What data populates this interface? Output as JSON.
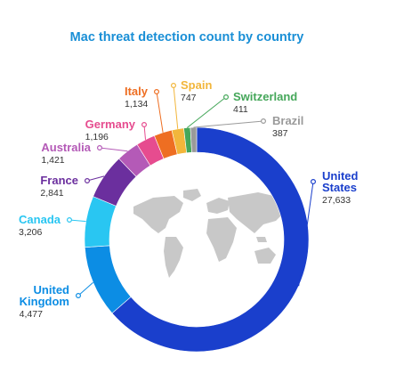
{
  "title_color": "#1a8fd6",
  "chart_data": {
    "type": "pie",
    "donut": true,
    "title": "Mac threat detection count by country",
    "legend": "callout labels around the ring",
    "slices": [
      {
        "label": "United States",
        "label_lines": [
          "United",
          "States"
        ],
        "value_text": "27,633",
        "value": 27633,
        "color": "#1a3fcc"
      },
      {
        "label": "United Kingdom",
        "label_lines": [
          "United",
          "Kingdom"
        ],
        "value_text": "4,477",
        "value": 4477,
        "color": "#0c8de4"
      },
      {
        "label": "Canada",
        "label_lines": [
          "Canada"
        ],
        "value_text": "3,206",
        "value": 3206,
        "color": "#29c6f2"
      },
      {
        "label": "France",
        "label_lines": [
          "France"
        ],
        "value_text": "2,841",
        "value": 2841,
        "color": "#6b2f9e"
      },
      {
        "label": "Australia",
        "label_lines": [
          "Australia"
        ],
        "value_text": "1,421",
        "value": 1421,
        "color": "#b45ab7"
      },
      {
        "label": "Germany",
        "label_lines": [
          "Germany"
        ],
        "value_text": "1,196",
        "value": 1196,
        "color": "#e64c8f"
      },
      {
        "label": "Italy",
        "label_lines": [
          "Italy"
        ],
        "value_text": "1,134",
        "value": 1134,
        "color": "#ee6e22"
      },
      {
        "label": "Spain",
        "label_lines": [
          "Spain"
        ],
        "value_text": "747",
        "value": 747,
        "color": "#f2b63b"
      },
      {
        "label": "Switzerland",
        "label_lines": [
          "Switzerland"
        ],
        "value_text": "411",
        "value": 411,
        "color": "#45a75a"
      },
      {
        "label": "Brazil",
        "label_lines": [
          "Brazil"
        ],
        "value_text": "387",
        "value": 387,
        "color": "#9a9a9a"
      }
    ]
  }
}
